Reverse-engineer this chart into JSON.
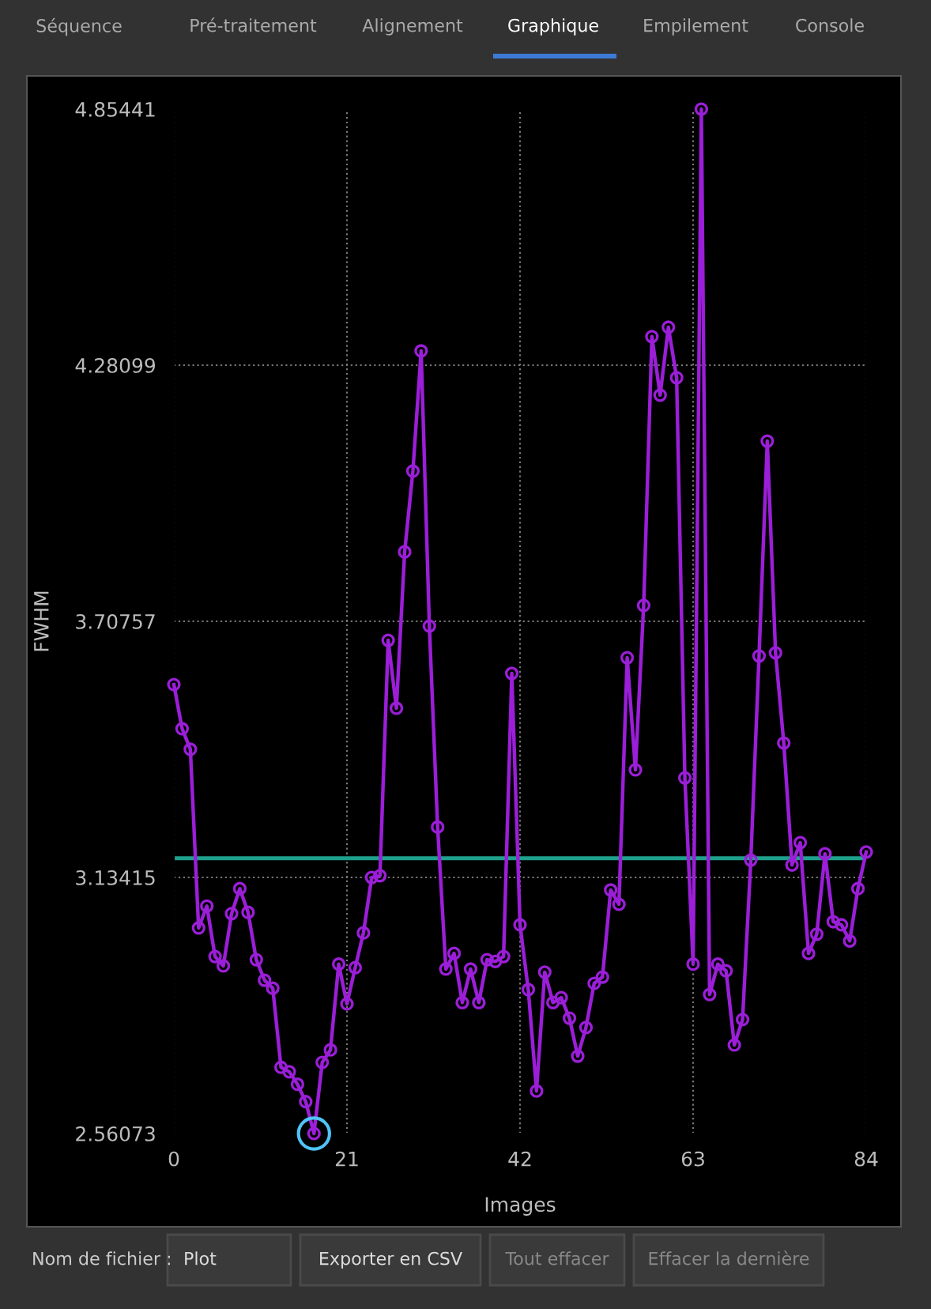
{
  "chart_data": {
    "type": "line",
    "xlabel": "Images",
    "ylabel": "FWHM",
    "annotations": [
      "Séquence",
      "Pré-traitement",
      "Alignement",
      "Graphique",
      "Empilement",
      "Console",
      "Nom de fichier :",
      "Plot",
      "Exporter en CSV",
      "Tout effacer",
      "Effacer la dernière"
    ],
    "series": [
      {
        "color": "#9b1ed8",
        "marker": "circle",
        "x": [
          0,
          1,
          2,
          3,
          4,
          5,
          6,
          7,
          8,
          9,
          10,
          11,
          12,
          13,
          14,
          15,
          16,
          17,
          18,
          19,
          20,
          21,
          22,
          23,
          24,
          25,
          26,
          27,
          28,
          29,
          30,
          31,
          32,
          33,
          34,
          35,
          36,
          37,
          38,
          39,
          40,
          41,
          42,
          43,
          44,
          45,
          46,
          47,
          48,
          49,
          50,
          51,
          52,
          53,
          54,
          55,
          56,
          57,
          58,
          59,
          60,
          61,
          62,
          63,
          64,
          65,
          66,
          67,
          68,
          69,
          70,
          71,
          72,
          73,
          74,
          75,
          76,
          77,
          78,
          79,
          80,
          81,
          82,
          83,
          84
        ],
        "values": [
          3.566,
          3.467,
          3.421,
          3.021,
          3.07,
          2.957,
          2.936,
          3.053,
          3.109,
          3.056,
          2.95,
          2.904,
          2.886,
          2.709,
          2.699,
          2.671,
          2.632,
          2.56073,
          2.72,
          2.748,
          2.94,
          2.851,
          2.932,
          3.01,
          3.134,
          3.138,
          3.665,
          3.513,
          3.863,
          4.044,
          4.313,
          3.697,
          3.247,
          2.929,
          2.964,
          2.854,
          2.929,
          2.854,
          2.95,
          2.946,
          2.957,
          3.591,
          3.028,
          2.883,
          2.656,
          2.922,
          2.854,
          2.865,
          2.819,
          2.734,
          2.798,
          2.897,
          2.911,
          3.106,
          3.074,
          3.626,
          3.375,
          3.743,
          4.345,
          4.214,
          4.366,
          4.253,
          3.357,
          2.94,
          4.85441,
          2.872,
          2.94,
          2.925,
          2.759,
          2.816,
          3.173,
          3.63,
          4.111,
          3.637,
          3.435,
          3.162,
          3.212,
          2.964,
          3.007,
          3.187,
          3.035,
          3.028,
          2.992,
          3.109,
          3.191
        ]
      },
      {
        "type": "scatter",
        "color": "#4fc3f7",
        "marker": "circle",
        "x": [
          17
        ],
        "values": [
          2.56073
        ]
      }
    ],
    "ref_lines": [
      {
        "axis": "y",
        "value": 3.177,
        "color": "#1fa08c",
        "line_style": "solid"
      }
    ],
    "xlim": [
      0,
      84
    ],
    "ylim": [
      2.56073,
      4.85441
    ],
    "xticks": [
      0,
      21,
      42,
      63,
      84
    ],
    "yticks": [
      2.56073,
      3.13415,
      3.70757,
      4.28099,
      4.85441
    ],
    "grid": true
  }
}
